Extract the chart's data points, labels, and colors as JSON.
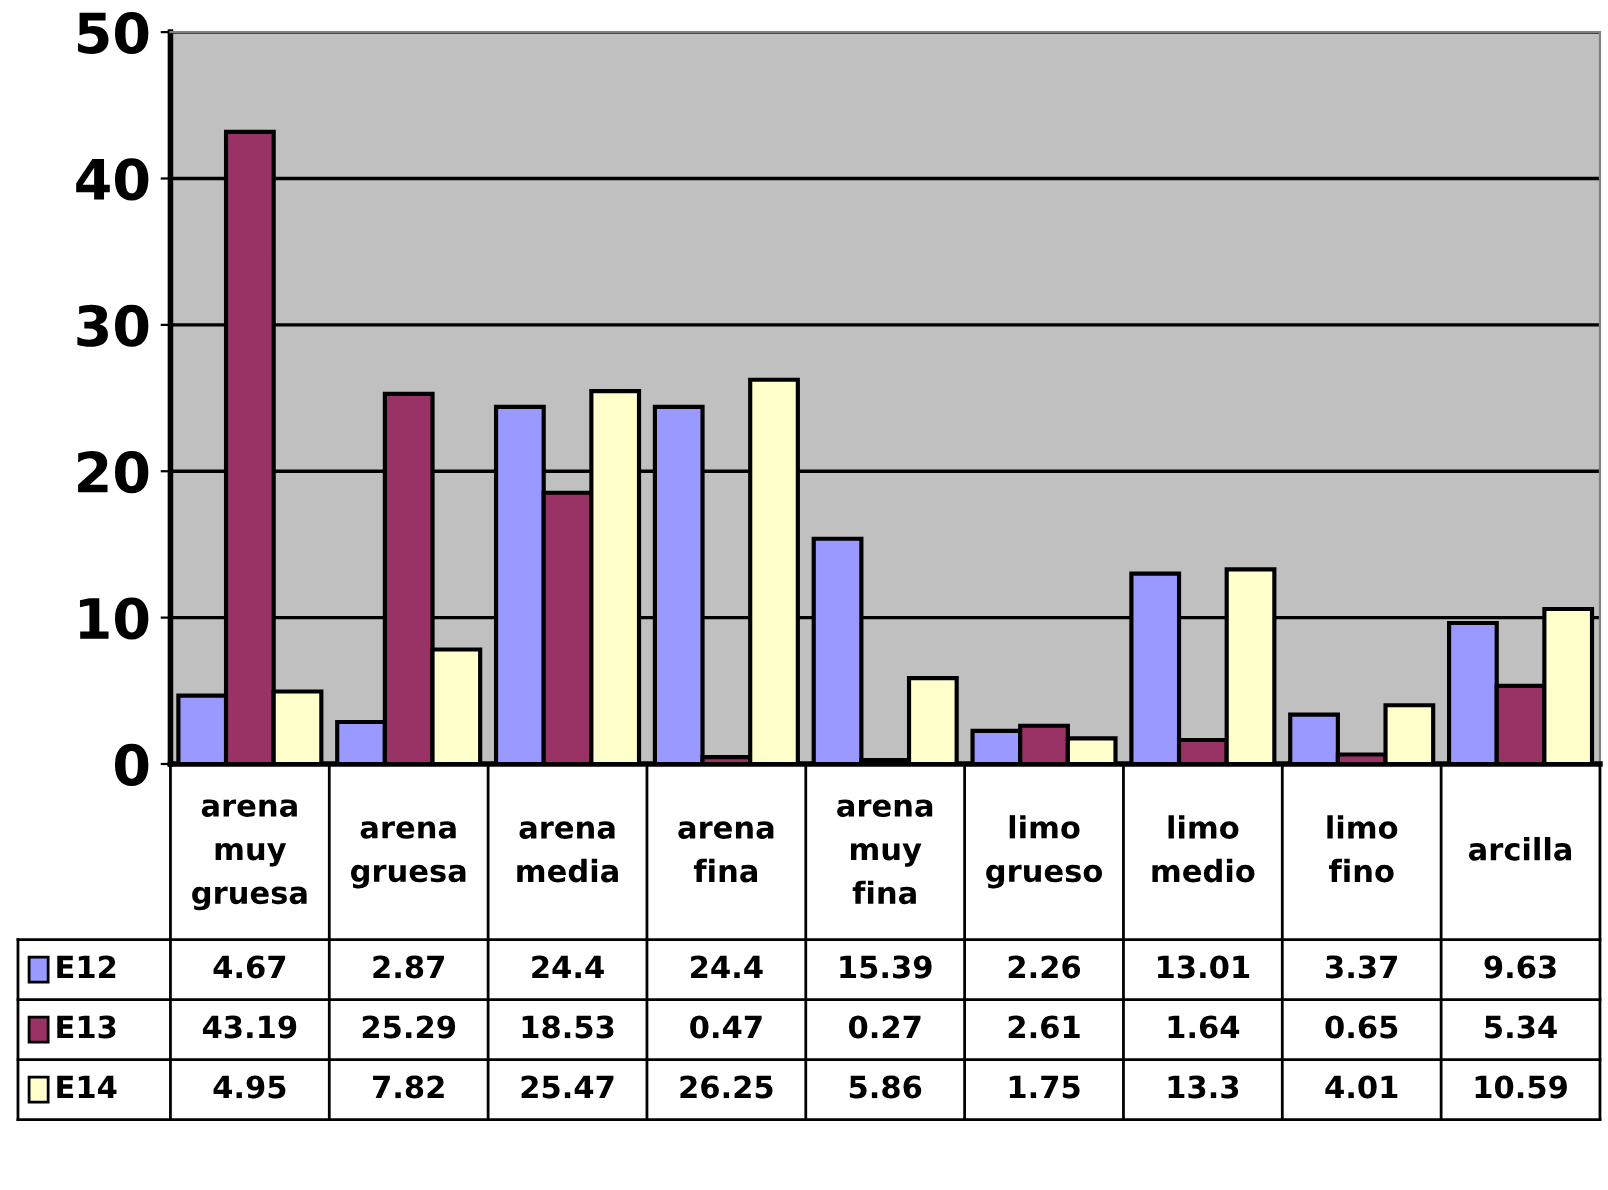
{
  "chart_data": {
    "type": "bar",
    "categories": [
      "arena muy gruesa",
      "arena gruesa",
      "arena media",
      "arena fina",
      "arena muy fina",
      "limo grueso",
      "limo medio",
      "limo fino",
      "arcilla"
    ],
    "series": [
      {
        "name": "E12",
        "color": "#9999ff",
        "values": [
          4.67,
          2.87,
          24.4,
          24.4,
          15.39,
          2.26,
          13.01,
          3.37,
          9.63
        ]
      },
      {
        "name": "E13",
        "color": "#993366",
        "values": [
          43.19,
          25.29,
          18.53,
          0.47,
          0.27,
          2.61,
          1.64,
          0.65,
          5.34
        ]
      },
      {
        "name": "E14",
        "color": "#ffffcc",
        "values": [
          4.95,
          7.82,
          25.47,
          26.25,
          5.86,
          1.75,
          13.3,
          4.01,
          10.59
        ]
      }
    ],
    "ylim": [
      0,
      50
    ],
    "yticks": [
      0,
      10,
      20,
      30,
      40,
      50
    ],
    "grid": "y",
    "data_labels": true,
    "legend": "bottom"
  }
}
